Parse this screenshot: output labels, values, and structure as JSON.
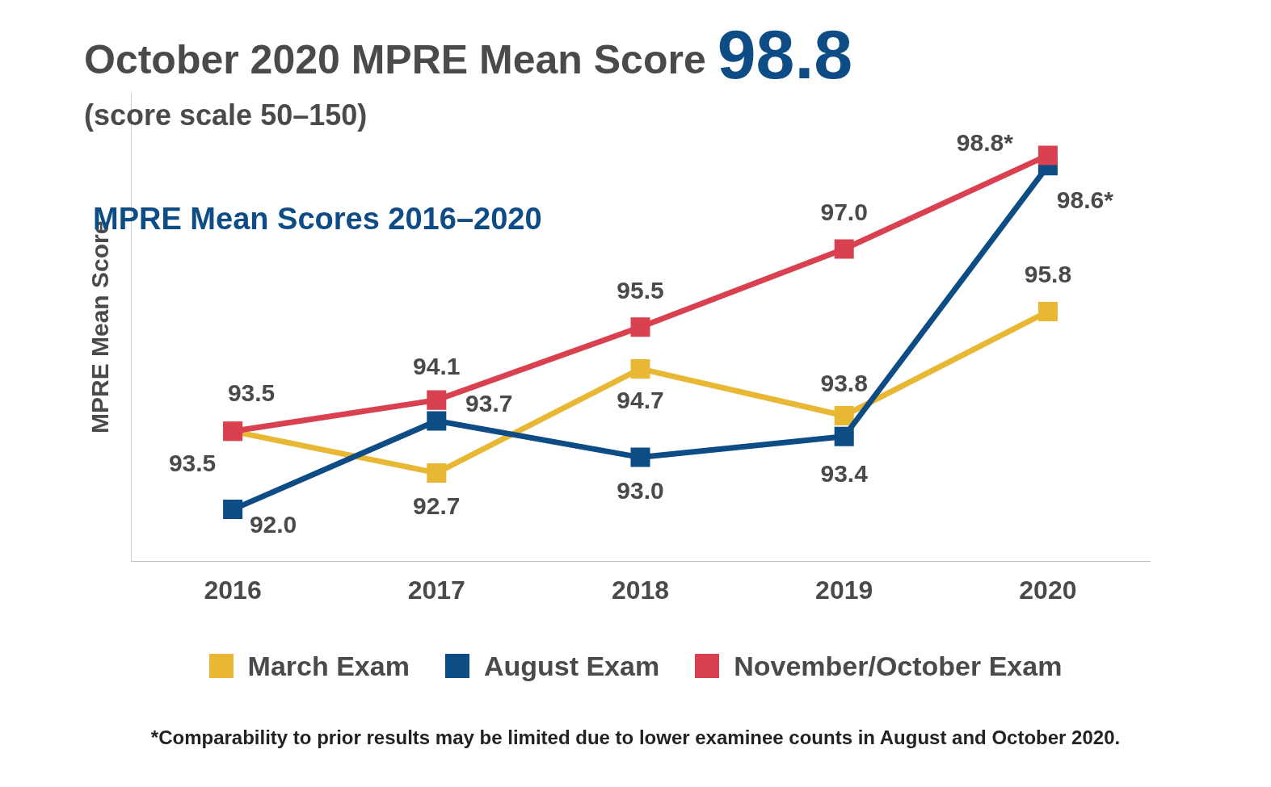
{
  "chart_data": {
    "type": "line",
    "title": "October 2020 MPRE Mean Score",
    "headline": "98.8",
    "subtitle": "(score scale 50–150)",
    "chart_title": "MPRE Mean Scores 2016–2020",
    "y_label": "MPRE Mean Score",
    "note": "*Comparability to prior results may be limited due to lower examinee counts in August and October 2020.",
    "categories": [
      "2016",
      "2017",
      "2018",
      "2019",
      "2020"
    ],
    "series": [
      {
        "name": "March Exam",
        "color": "#e8b835",
        "marker": "square",
        "line_style": "solid",
        "values": [
          93.5,
          92.7,
          94.7,
          93.8,
          95.8
        ],
        "value_labels": [
          "93.5",
          "92.7",
          "94.7",
          "93.8",
          "95.8"
        ]
      },
      {
        "name": "August Exam",
        "color": "#0d4c85",
        "marker": "square",
        "line_style": "solid",
        "values": [
          92.0,
          93.7,
          93.0,
          93.4,
          98.6
        ],
        "value_labels": [
          "92.0",
          "93.7",
          "93.0",
          "93.4",
          "98.6*"
        ]
      },
      {
        "name": "November/October Exam",
        "color": "#d94050",
        "marker": "square",
        "line_style": "solid",
        "values": [
          93.5,
          94.1,
          95.5,
          97.0,
          98.8
        ],
        "value_labels": [
          "93.5",
          "94.1",
          "95.5",
          "97.0",
          "98.8*"
        ]
      }
    ],
    "ylim": [
      91,
      100
    ],
    "grid": false,
    "legend": "bottom",
    "data_labels": true,
    "tick_labels": "x"
  }
}
